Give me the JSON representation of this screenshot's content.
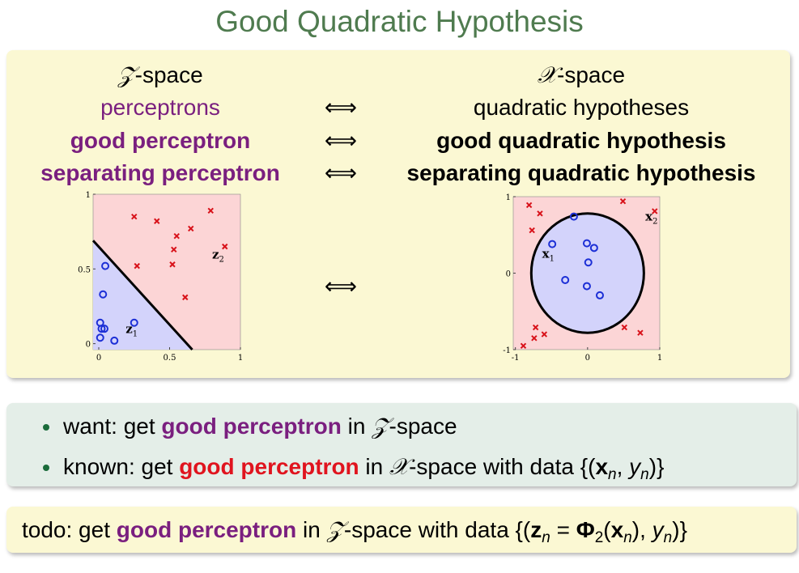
{
  "title": "Good Quadratic Hypothesis",
  "arrow": "⟺",
  "rows": [
    {
      "left": [
        {
          "text": "𝒵",
          "style": "math"
        },
        {
          "text": "-space",
          "style": ""
        }
      ],
      "right": [
        {
          "text": "𝒳",
          "style": "math"
        },
        {
          "text": "-space",
          "style": ""
        }
      ]
    },
    {
      "left": [
        {
          "text": "perceptrons",
          "style": "purple"
        }
      ],
      "right": [
        {
          "text": "quadratic hypotheses",
          "style": ""
        }
      ]
    },
    {
      "left": [
        {
          "text": "good perceptron",
          "style": "purple bold"
        }
      ],
      "right": [
        {
          "text": "good quadratic hypothesis",
          "style": "bold"
        }
      ]
    },
    {
      "left": [
        {
          "text": "separating perceptron",
          "style": "purple bold"
        }
      ],
      "right": [
        {
          "text": "separating quadratic hypothesis",
          "style": "bold"
        }
      ]
    }
  ],
  "plots": [
    {
      "type": "scatter",
      "xlim": [
        -0.04,
        1
      ],
      "ylim": [
        -0.04,
        1
      ],
      "xticks": [
        0,
        0.5,
        1
      ],
      "yticks": [
        0,
        0.5,
        1
      ],
      "circles": {
        "x": [
          0.046,
          0.03,
          0.01,
          0.04,
          0.02,
          0.01,
          0.11,
          0.25
        ],
        "y": [
          0.52,
          0.33,
          0.14,
          0.1,
          0.1,
          0.04,
          0.02,
          0.14
        ]
      },
      "crosses": {
        "x": [
          0.25,
          0.41,
          0.79,
          0.65,
          0.55,
          0.89,
          0.53,
          0.27,
          0.52,
          0.61
        ],
        "y": [
          0.85,
          0.82,
          0.89,
          0.77,
          0.72,
          0.65,
          0.63,
          0.52,
          0.53,
          0.31
        ]
      },
      "boundary": {
        "kind": "line",
        "x": [
          -0.04,
          0.66
        ],
        "y": [
          0.69,
          -0.04
        ]
      },
      "annotations": [
        {
          "x": 0.19,
          "y": 0.07,
          "text": "z",
          "sub": "1"
        },
        {
          "x": 0.8,
          "y": 0.57,
          "text": "z",
          "sub": "2"
        }
      ]
    },
    {
      "type": "scatter",
      "xlim": [
        -1.03,
        1
      ],
      "ylim": [
        -1,
        1
      ],
      "xticks": [
        -1,
        0,
        1
      ],
      "yticks": [
        -1,
        0,
        1
      ],
      "circles": {
        "x": [
          -0.19,
          -0.49,
          -0.01,
          0.09,
          0.01,
          -0.31,
          -0.01,
          0.17
        ],
        "y": [
          0.74,
          0.38,
          0.39,
          0.33,
          0.14,
          -0.09,
          -0.17,
          -0.29
        ]
      },
      "crosses": {
        "x": [
          -0.81,
          -0.66,
          -0.77,
          0.49,
          0.93,
          -0.72,
          -0.74,
          -0.89,
          -0.6,
          0.51,
          0.73
        ],
        "y": [
          0.89,
          0.78,
          0.56,
          0.94,
          0.81,
          -0.71,
          -0.85,
          -0.95,
          -0.8,
          -0.71,
          -0.78
        ]
      },
      "boundary": {
        "kind": "circle",
        "cx": 0,
        "cy": 0,
        "r": 0.78
      },
      "annotations": [
        {
          "x": -0.63,
          "y": 0.2,
          "text": "x",
          "sub": "1"
        },
        {
          "x": 0.8,
          "y": 0.69,
          "text": "x",
          "sub": "2"
        }
      ]
    }
  ],
  "bullets": [
    [
      {
        "text": "want: get ",
        "style": ""
      },
      {
        "text": "good perceptron",
        "style": "purple bold"
      },
      {
        "text": " in ",
        "style": ""
      },
      {
        "text": "𝒵",
        "style": "math"
      },
      {
        "text": "-space",
        "style": ""
      }
    ],
    [
      {
        "text": "known: get ",
        "style": ""
      },
      {
        "text": "good perceptron",
        "style": "red bold"
      },
      {
        "text": " in ",
        "style": ""
      },
      {
        "text": "𝒳",
        "style": "math"
      },
      {
        "text": "-space with data {(",
        "style": ""
      },
      {
        "text": "x",
        "style": "bold"
      },
      {
        "text": "n",
        "style": "sub italic"
      },
      {
        "text": ", ",
        "style": ""
      },
      {
        "text": "y",
        "style": "italic"
      },
      {
        "text": "n",
        "style": "sub italic"
      },
      {
        "text": ")}",
        "style": ""
      }
    ]
  ],
  "todo": [
    {
      "text": "todo: get ",
      "style": ""
    },
    {
      "text": "good perceptron",
      "style": "purple bold"
    },
    {
      "text": " in ",
      "style": ""
    },
    {
      "text": "𝒵",
      "style": "math"
    },
    {
      "text": "-space with data {(",
      "style": ""
    },
    {
      "text": "z",
      "style": "bold"
    },
    {
      "text": "n",
      "style": "sub italic"
    },
    {
      "text": " = ",
      "style": ""
    },
    {
      "text": "Φ",
      "style": "bold"
    },
    {
      "text": "2",
      "style": "sub"
    },
    {
      "text": "(",
      "style": ""
    },
    {
      "text": "x",
      "style": "bold"
    },
    {
      "text": "n",
      "style": "sub italic"
    },
    {
      "text": "), ",
      "style": ""
    },
    {
      "text": "y",
      "style": "italic"
    },
    {
      "text": "n",
      "style": "sub italic"
    },
    {
      "text": ")}",
      "style": ""
    }
  ]
}
